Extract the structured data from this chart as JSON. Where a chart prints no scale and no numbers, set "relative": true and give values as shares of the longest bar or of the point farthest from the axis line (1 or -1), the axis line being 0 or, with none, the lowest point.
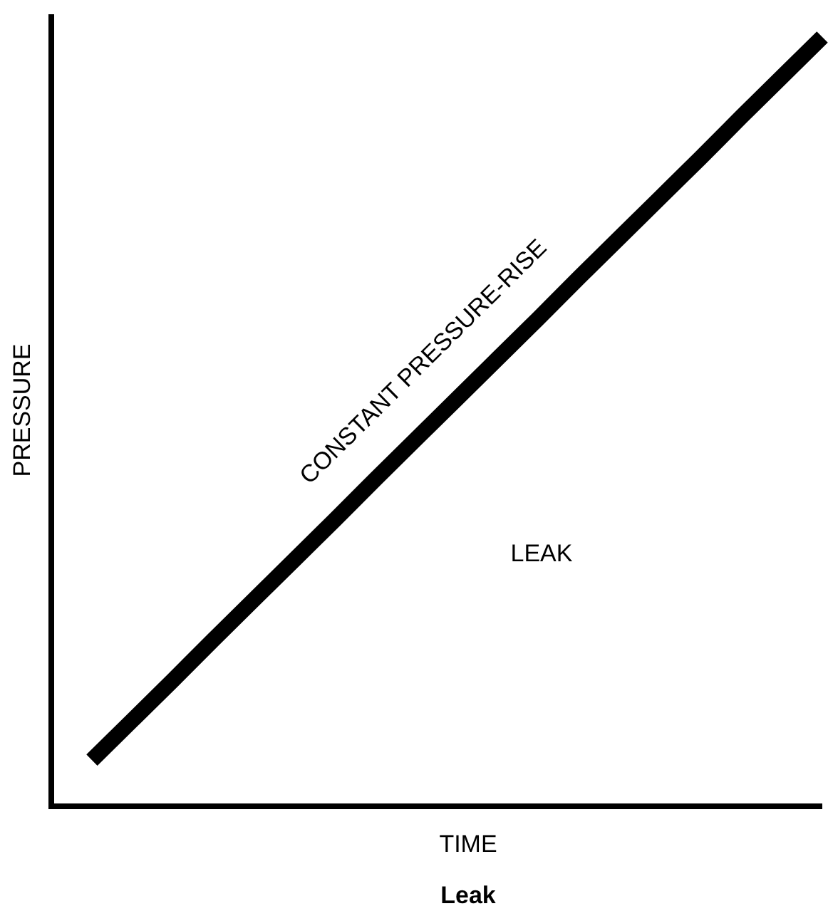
{
  "chart_data": {
    "type": "line",
    "title": "Leak",
    "xlabel": "TIME",
    "ylabel": "PRESSURE",
    "relative": true,
    "categories": [
      null,
      null,
      null,
      null,
      null,
      null,
      null,
      null,
      null,
      null,
      null,
      null,
      null,
      null,
      null,
      null,
      null,
      null,
      null,
      null
    ],
    "series": [
      {
        "name": "CONSTANT PRESSURE-RISE",
        "color": "#000000",
        "values": [
          null,
          0.06,
          0.112,
          0.164,
          0.217,
          0.269,
          0.321,
          0.373,
          0.426,
          0.478,
          0.53,
          0.582,
          0.634,
          0.687,
          0.739,
          0.791,
          0.843,
          0.896,
          0.948,
          1
        ]
      }
    ],
    "annotations": [
      "LEAK"
    ],
    "marker": "none",
    "line_style": "solid"
  }
}
